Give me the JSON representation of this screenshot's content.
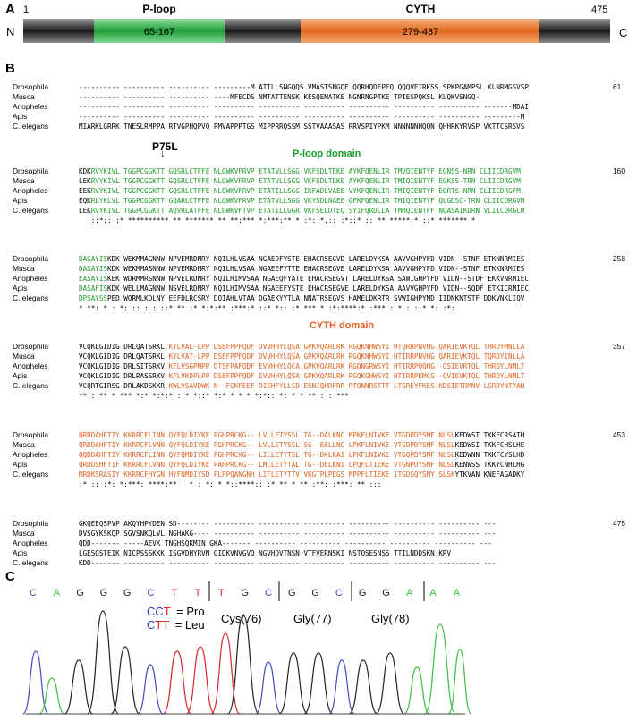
{
  "panel_a": {
    "label": "A",
    "start": "1",
    "end": "475",
    "n_term": "N",
    "c_term": "C",
    "domains": [
      {
        "name": "P-loop",
        "range": "65-167",
        "color": "#2bb24c"
      },
      {
        "name": "CYTH",
        "range": "279-437",
        "color": "#ee7a32"
      }
    ]
  },
  "panel_b": {
    "label": "B",
    "p75l_label": "P75L",
    "ploop_domain_label": "P-loop domain",
    "cyth_domain_label": "CYTH domain",
    "colors": {
      "green": "#1e9d2a",
      "orange": "#e0621e"
    },
    "blocks": [
      {
        "rows": [
          {
            "name": "Drosophila",
            "seq": [
              [
                "k",
                "---------- ---------- ---------- ---------M ATTLLSNGQQS VMASTSNGQE QQRHQDEPEQ QQQVEIRKSS SPKPGAMPSL KLNRMGSVSP"
              ]
            ],
            "count": "61"
          },
          {
            "name": "Musca",
            "seq": [
              [
                "k",
                "---------- ---------- ---------- ----MFECDS NMTATTENSK KESQEMATKE NGNRNGPTKE TPIESPQKSL KLQKVSNGQ-"
              ]
            ],
            "count": ""
          },
          {
            "name": "Anopheles",
            "seq": [
              [
                "k",
                "---------- ---------- ---------- ---------- ---------- ---------- ---------- ---------- ---------- -------MDAI"
              ]
            ],
            "count": ""
          },
          {
            "name": "Apis",
            "seq": [
              [
                "k",
                "---------- ---------- ---------- ---------- ---------- ---------- ---------- ---------- ---------- ---------M"
              ]
            ],
            "count": ""
          },
          {
            "name": "C. elegans",
            "seq": [
              [
                "k",
                "MIARKLGRRK TNESLRMPPA RTVGPHQPVQ PMVAPPPTGS MIPPRRQSSM SSTVAAASAS RRVSPIYPKM NNNNNNHQQN QHHRKYRVSP VKTTCSRSVS"
              ]
            ],
            "count": ""
          }
        ],
        "cons": ""
      },
      {
        "rows": [
          {
            "name": "Drosophila",
            "seq": [
              [
                "k",
                "KDK"
              ],
              [
                "g",
                "RVYKIVL TGGPCGGKTT GQSRLCTFFE NLGWKVFRVP ETATVLLSGG VKFSDLTEKE AYKFQENLIR TMVQIENTYF EGNSS-NRN CLIICDRGVM"
              ]
            ],
            "count": "160"
          },
          {
            "name": "Musca",
            "seq": [
              [
                "k",
                "LEK"
              ],
              [
                "g",
                "RVYKIVL TGGPCGGKTT GQSRLCTFFE NLGWKVFRVP ETATVLLSGG VKFSDLTEKE AYKFQENLIR TMIQIENTYF EGKSS-TRN CLIICDRGVM"
              ]
            ],
            "count": ""
          },
          {
            "name": "Anopheles",
            "seq": [
              [
                "k",
                "EEK"
              ],
              [
                "g",
                "RVYKIVL TGGPCGGKTT GQSRLCTFFE NLGWKVFRVP ETATILLSGG IKFADLVAEE VYKFQENLIR TMIQIENTYF EGRTS-NRN CLIICDRGFM"
              ]
            ],
            "count": ""
          },
          {
            "name": "Apis",
            "seq": [
              [
                "k",
                "EQK"
              ],
              [
                "g",
                "RLYKLVL TGGPCGGKTT GQARLCTFFE NLGWKVFRVP ETATVLLSGG VKYSDLNAEE GFKFQENLIR TMIQIENTYF QLGDSC-TRN CLIICDRGVM"
              ]
            ],
            "count": ""
          },
          {
            "name": "C. elegans",
            "seq": [
              [
                "k",
                "LEK"
              ],
              [
                "g",
                "RVYKIVL TGGPCGGKTT AQVRLATFFE NLGWKVFTVP ETATILLGGR VKFSELDTEQ SYIFQRDLLA TMHQIENTFF NQASAIKDRN VLIICDRGCM"
              ]
            ],
            "count": ""
          }
        ],
        "cons": "  :::*:: :* ********** ** ******* ** **:*** *:***:** * :*::*.:: :*::* :: ** *****:* ::* ******* *"
      },
      {
        "rows": [
          {
            "name": "Drosophila",
            "seq": [
              [
                "g",
                "DASAYIS"
              ],
              [
                "k",
                "KDK WEKMMAGNNW NPVEMRDNRY NQILHLVSAA NGAEDFYSTE EHACRSEGVD LARELDYKSA AAVVGHPYFD VIDN--STNF ETKNNRMIES"
              ]
            ],
            "count": "258"
          },
          {
            "name": "Musca",
            "seq": [
              [
                "g",
                "DASAYIS"
              ],
              [
                "k",
                "KDK WEKMMASNNW NPVEMRDNRY NQILHLVSAA NGAEEFYTTE EHACRSEGVE LARELDYKSA AAVVGHPYFD VIDN--STNF ETKKNRMIES"
              ]
            ],
            "count": ""
          },
          {
            "name": "Anopheles",
            "seq": [
              [
                "g",
                "EASAYIS"
              ],
              [
                "k",
                "KEK WDRMMRSNNW NPVELRDNRY NQILHIMVSAA NGAEQFYATE EHACRSEGVT LARELDYKSA SAWIGHPYFD VIDN--STDF EKKVNRMIEC"
              ]
            ],
            "count": ""
          },
          {
            "name": "Apis",
            "seq": [
              [
                "g",
                "DASAFIS"
              ],
              [
                "k",
                "KDK WELLMAGNNW NSVELRDNRY NQILHIMVSAA NGAEEFYSTE EHACRSEGVE LARELDYKSA AAVVGHPYFD VIDN--SQDF ETKICRMIEC"
              ]
            ],
            "count": ""
          },
          {
            "name": "C. elegans",
            "seq": [
              [
                "g",
                "DPSAYSS"
              ],
              [
                "k",
                "PED WQRMLKDLNY EEFDLRCSRY DQIAHLVTAA DGAEKYYTLA NNATRSEGVS HAMELDKRTR SVWIGHPYMD IIDNKNTSTF DDKVNKLIQV"
              ]
            ],
            "count": ""
          }
        ],
        "cons": "* **: * : *: :: : : ::* ** :* *:*:** :***:* ::* *:: :* *** * :*:****:* :*** : * : ::* *: :*:"
      },
      {
        "rows": [
          {
            "name": "Drosophila",
            "seq": [
              [
                "k",
                "VCQKLGIDIG DRLQATSRKL "
              ],
              [
                "o",
                "KYLVAL-LPP DSEFPPFQDF DVVHHYLQSA GPKVQARLRK RGQKNHWSYI HTQRRPNVHG QARIEVKTQL THRDYMNLLA"
              ]
            ],
            "count": "357"
          },
          {
            "name": "Musca",
            "seq": [
              [
                "k",
                "VCQKLGIDIG DRLQATSRKL "
              ],
              [
                "o",
                "KYLVAT-LPP DSEFPPFQDF DVVHHYLQSA GPKVQARLRK RGQKNHWSYI HTIRRPNVHG QARIEVKTQL TQRDYINLLA"
              ]
            ],
            "count": ""
          },
          {
            "name": "Anopheles",
            "seq": [
              [
                "k",
                "VCQKLGIDIG DRLSITSRKV "
              ],
              [
                "o",
                "KFLVSGPMPP DTSFPAFQDF EVVHHYLQCA GPKVQARLRK RGQNGRWSYI HTIRRPQQHG -QSIEVRTQL THRDYLNMLT"
              ]
            ],
            "count": ""
          },
          {
            "name": "Apis",
            "seq": [
              [
                "k",
                "VCQKLGIDIG DRLRASSRKV "
              ],
              [
                "o",
                "KFLVKDPLPP DSEFPPFQDF EVVHHYLQSA GPKVQARLRK RGQKGHWSYI HTIRRPKMCG -QVIEVKTQL THRDYLNMLT"
              ]
            ],
            "count": ""
          },
          {
            "name": "C. elegans",
            "seq": [
              [
                "k",
                "VCQRTGIRSG DRLAKDSKKR "
              ],
              [
                "o",
                "KWLVSAVDWK N--FGKFEEF DIEHFYLLSD ESNIQHRFRR RTQNNRSTTT LTSREYFKES KDSIETRMNV LSRDYNTYAN"
              ]
            ],
            "count": ""
          }
        ],
        "cons": "**:: ** * *** *:* *:*:* : * *::* *:* * * * *:*:: *: * * ** : : ***"
      },
      {
        "rows": [
          {
            "name": "Drosophila",
            "seq": [
              [
                "o",
                "QRDDAHFTIY KKRRCFLINN QYFQLDIYKE PGHPRCKG-- LVLLETYSSL TG--DALKNC MPKFLNIVKE VTGDPDYSMF NLSL"
              ],
              [
                "k",
                "KEDWST TKKFCRSATH"
              ]
            ],
            "count": "453"
          },
          {
            "name": "Musca",
            "seq": [
              [
                "o",
                "QRDDAHFTIY KKRRCFLVNN QYFQLDIYKE PGHPRCKG-- LVLLETYSSL SG--EALLNC LPKFLNIVKE VTGDPDYSMF NLSL"
              ],
              [
                "k",
                "KEDWSI TKKFCHSLHE"
              ]
            ],
            "count": ""
          },
          {
            "name": "Anopheles",
            "seq": [
              [
                "o",
                "QQDDAHFTIY KKRRCFLINN QYFQMDIYKE PGHPRCKG-- LILLETYTSL TG--DKLKAI LPKFLNIVKE VTGQPDYSMF NLSL"
              ],
              [
                "k",
                "KEDWNN TKKFCYSLHD"
              ]
            ],
            "count": ""
          },
          {
            "name": "Apis",
            "seq": [
              [
                "o",
                "QRDDSHFTIF KKRRCFLVNN QYFQLDIYKE PAHPRCKG-- LMLLETYTAL TG--DELKNI LPQFLTIEKE VTGNPDYSMF NLSL"
              ],
              [
                "k",
                "KENWSS TKKYCNHLHG"
              ]
            ],
            "count": ""
          },
          {
            "name": "C. elegans",
            "seq": [
              [
                "o",
                "MRDKSRASIY KKRRCFHYGN HYFNMDIYSD PLPPQANGNH LIFLETYTTV VKGTPLPEGS MPPFLTIEKE ITGDSQYSMY SLSK"
              ],
              [
                "k",
                "YTKVAN KNEFAGADKY"
              ]
            ],
            "count": ""
          }
        ],
        "cons": ":* :: :*: *:***: ****:** : * : *: * *::****:: :* ** * ** :**: :***: ** :::"
      },
      {
        "rows": [
          {
            "name": "Drosophila",
            "seq": [
              [
                "k",
                "GKQEEQSPVP AKQYHPYDEN SD-------- ---------- ---------- ---------- ---------- ---------- ---------- ---"
              ]
            ],
            "count": "475"
          },
          {
            "name": "Musca",
            "seq": [
              [
                "k",
                "DVSGYKSKQP SGVSNKQLVL NGHAKG---- ---------- ---------- ---------- ---------- ---------- ---------- ---"
              ]
            ],
            "count": ""
          },
          {
            "name": "Anopheles",
            "seq": [
              [
                "k",
                "QDD------- -----AEVK TNGHSQKMIN GKA------- ---------- ---------- ---------- ---------- ---------- ---"
              ]
            ],
            "count": ""
          },
          {
            "name": "Apis",
            "seq": [
              [
                "k",
                "LGESGSTEIK NICPSSSKKK ISGVDHYRVN GIDKVNVGVQ NGVHDVTNSN VTFVERNSKI NSTQSESNSS TTILNDDSKN KRV"
              ]
            ],
            "count": ""
          },
          {
            "name": "C. elegans",
            "seq": [
              [
                "k",
                "KDD------- ---------- ---------- ---------- ---------- ---------- ---------- ---------- ---------- ---"
              ]
            ],
            "count": ""
          }
        ],
        "cons": ""
      }
    ]
  },
  "panel_c": {
    "label": "C",
    "bases": [
      {
        "b": "C",
        "c": "#3b4cc0"
      },
      {
        "b": "A",
        "c": "#3fbf3f"
      },
      {
        "b": "G",
        "c": "#222222"
      },
      {
        "b": "G",
        "c": "#222222"
      },
      {
        "b": "G",
        "c": "#222222"
      },
      {
        "b": "C",
        "c": "#3b4cc0"
      },
      {
        "b": "T",
        "c": "#d62728"
      },
      {
        "b": "T",
        "c": "#d62728"
      },
      {
        "b": "T",
        "c": "#d62728"
      },
      {
        "b": "G",
        "c": "#222222"
      },
      {
        "b": "C",
        "c": "#3b4cc0"
      },
      {
        "b": "G",
        "c": "#222222"
      },
      {
        "b": "G",
        "c": "#222222"
      },
      {
        "b": "C",
        "c": "#3b4cc0"
      },
      {
        "b": "G",
        "c": "#222222"
      },
      {
        "b": "G",
        "c": "#222222"
      },
      {
        "b": "A",
        "c": "#3fbf3f"
      },
      {
        "b": "A",
        "c": "#3fbf3f"
      },
      {
        "b": "A",
        "c": "#3fbf3f"
      }
    ],
    "codon_pro_prefix": "C",
    "codon_pro_mid": "C",
    "codon_pro_suffix": "T",
    "codon_pro_text": "= Pro",
    "codon_leu_prefix": "C",
    "codon_leu_mid": "T",
    "codon_leu_suffix": "T",
    "codon_leu_text": "= Leu",
    "aa_labels": [
      "Cys(76)",
      "Gly(77)",
      "Gly(78)"
    ]
  }
}
